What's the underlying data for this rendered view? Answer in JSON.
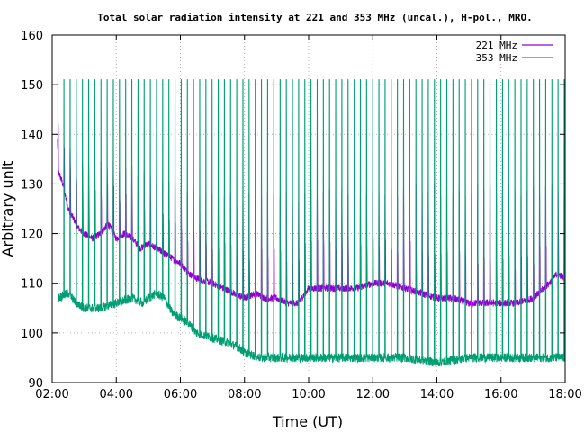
{
  "chart_data": {
    "type": "line",
    "title": "Total solar radiation intensity at 221 and 353 MHz (uncal.), H-pol., MRO.",
    "xlabel": "Time (UT)",
    "ylabel": "Arbitrary unit",
    "xlim": [
      "02:00",
      "18:00"
    ],
    "ylim": [
      90,
      160
    ],
    "x_ticks": [
      "02:00",
      "04:00",
      "06:00",
      "08:00",
      "10:00",
      "12:00",
      "14:00",
      "16:00",
      "18:00"
    ],
    "y_ticks": [
      "90",
      "100",
      "110",
      "120",
      "130",
      "140",
      "150",
      "160"
    ],
    "grid": true,
    "legend_position": "top-right",
    "series": [
      {
        "name": "221 MHz",
        "color": "#9400d3",
        "baseline": [
          [
            "02:10",
            133
          ],
          [
            "02:20",
            130
          ],
          [
            "02:30",
            125
          ],
          [
            "02:40",
            123
          ],
          [
            "02:50",
            121
          ],
          [
            "03:00",
            120
          ],
          [
            "03:15",
            119
          ],
          [
            "03:30",
            120
          ],
          [
            "03:45",
            122
          ],
          [
            "04:00",
            119
          ],
          [
            "04:15",
            120
          ],
          [
            "04:30",
            119
          ],
          [
            "04:45",
            117
          ],
          [
            "05:00",
            118
          ],
          [
            "05:15",
            117
          ],
          [
            "05:30",
            116
          ],
          [
            "05:45",
            115
          ],
          [
            "06:00",
            114
          ],
          [
            "06:15",
            112
          ],
          [
            "06:30",
            111
          ],
          [
            "07:00",
            110
          ],
          [
            "07:20",
            109
          ],
          [
            "07:40",
            108
          ],
          [
            "08:00",
            107
          ],
          [
            "08:20",
            108
          ],
          [
            "08:40",
            107
          ],
          [
            "09:00",
            107
          ],
          [
            "09:20",
            106
          ],
          [
            "09:40",
            106
          ],
          [
            "10:00",
            109
          ],
          [
            "10:30",
            109
          ],
          [
            "11:00",
            109
          ],
          [
            "11:30",
            109
          ],
          [
            "12:00",
            110
          ],
          [
            "12:30",
            110
          ],
          [
            "13:00",
            109
          ],
          [
            "13:30",
            108
          ],
          [
            "14:00",
            107
          ],
          [
            "14:30",
            107
          ],
          [
            "15:00",
            106
          ],
          [
            "15:30",
            106
          ],
          [
            "16:00",
            106
          ],
          [
            "16:30",
            106
          ],
          [
            "17:00",
            107
          ],
          [
            "17:30",
            110
          ],
          [
            "17:45",
            112
          ],
          [
            "18:00",
            111
          ]
        ],
        "periodic_peaks": [
          [
            "02:20",
            140
          ],
          [
            "03:00",
            135
          ],
          [
            "04:00",
            135
          ],
          [
            "06:00",
            130
          ],
          [
            "08:00",
            128
          ],
          [
            "12:00",
            130
          ],
          [
            "16:00",
            130
          ],
          [
            "18:00",
            130
          ]
        ]
      },
      {
        "name": "353 MHz",
        "color": "#009e73",
        "baseline": [
          [
            "02:10",
            107
          ],
          [
            "02:30",
            108
          ],
          [
            "02:45",
            106
          ],
          [
            "03:00",
            105
          ],
          [
            "03:30",
            105
          ],
          [
            "04:00",
            106
          ],
          [
            "04:30",
            107
          ],
          [
            "04:50",
            106
          ],
          [
            "05:00",
            107
          ],
          [
            "05:15",
            108
          ],
          [
            "05:30",
            107
          ],
          [
            "05:45",
            104
          ],
          [
            "06:00",
            103
          ],
          [
            "06:15",
            102
          ],
          [
            "06:30",
            100
          ],
          [
            "07:00",
            99
          ],
          [
            "07:30",
            98
          ],
          [
            "07:50",
            97
          ],
          [
            "08:00",
            96
          ],
          [
            "08:30",
            95
          ],
          [
            "09:00",
            95
          ],
          [
            "10:00",
            95
          ],
          [
            "11:00",
            95
          ],
          [
            "12:00",
            95
          ],
          [
            "13:00",
            95
          ],
          [
            "14:00",
            94
          ],
          [
            "15:00",
            95
          ],
          [
            "16:00",
            95
          ],
          [
            "17:00",
            95
          ],
          [
            "18:00",
            95
          ]
        ],
        "periodic_peaks_value": 151
      }
    ]
  }
}
